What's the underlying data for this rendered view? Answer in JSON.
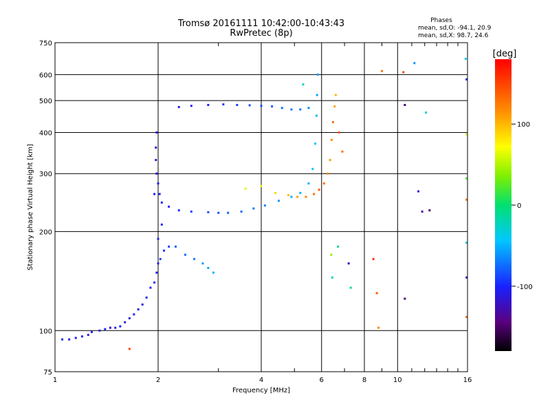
{
  "chart_data": {
    "type": "scatter",
    "title": "Tromsø 20161111 10:42:00-10:43:43",
    "subtitle": "RwPretec (8p)",
    "stats": {
      "heading": "Phases",
      "line_o": "mean, sd,O: -94.1, 20.9",
      "line_x": "mean, sd,X:  98.7, 24.6"
    },
    "xlabel": "Frequency [MHz]",
    "ylabel": "Stationary phase Virtual Height [km]",
    "x_scale": "log",
    "y_scale": "log",
    "xlim": [
      1,
      16
    ],
    "ylim": [
      75,
      750
    ],
    "x_ticks": [
      1,
      2,
      4,
      6,
      8,
      10,
      16
    ],
    "x_tick_labels": [
      "1",
      "2",
      "4",
      "6",
      "8",
      "10",
      "16"
    ],
    "y_ticks": [
      75,
      100,
      200,
      300,
      400,
      500,
      600,
      750
    ],
    "y_tick_labels": [
      "75",
      "100",
      "200",
      "300",
      "400",
      "500",
      "600",
      "750"
    ],
    "grid": true,
    "colorbar": {
      "label": "[deg]",
      "range": [
        -180,
        180
      ],
      "ticks": [
        100,
        0,
        -100
      ],
      "tick_labels": [
        "100",
        "0",
        "-100"
      ]
    },
    "series": [
      {
        "points": [
          [
            1.05,
            94,
            -100
          ],
          [
            1.1,
            94,
            -110
          ],
          [
            1.15,
            95,
            -105
          ],
          [
            1.2,
            96,
            -100
          ],
          [
            1.25,
            97,
            -115
          ],
          [
            1.28,
            99,
            -100
          ],
          [
            1.35,
            100,
            -110
          ],
          [
            1.4,
            101,
            -100
          ],
          [
            1.45,
            102,
            -120
          ],
          [
            1.5,
            102,
            -105
          ],
          [
            1.55,
            103,
            -100
          ],
          [
            1.6,
            106,
            -110
          ],
          [
            1.65,
            109,
            -115
          ],
          [
            1.7,
            112,
            -100
          ],
          [
            1.75,
            116,
            -105
          ],
          [
            1.8,
            120,
            -110
          ],
          [
            1.85,
            126,
            -100
          ],
          [
            1.9,
            135,
            -100
          ],
          [
            1.95,
            140,
            -95
          ],
          [
            1.98,
            150,
            -105
          ],
          [
            2.0,
            160,
            -110
          ],
          [
            2.03,
            165,
            -90
          ],
          [
            2.08,
            175,
            -95
          ],
          [
            2.15,
            180,
            -90
          ],
          [
            2.25,
            180,
            -80
          ],
          [
            2.4,
            170,
            -75
          ],
          [
            2.55,
            165,
            -70
          ],
          [
            2.7,
            160,
            -60
          ],
          [
            2.8,
            155,
            -55
          ],
          [
            2.9,
            150,
            -50
          ],
          [
            1.98,
            300,
            -110
          ],
          [
            1.97,
            330,
            -115
          ],
          [
            1.97,
            360,
            -120
          ],
          [
            1.98,
            400,
            -115
          ],
          [
            2.0,
            280,
            -105
          ],
          [
            2.02,
            260,
            -105
          ],
          [
            2.05,
            245,
            -100
          ],
          [
            2.15,
            238,
            -100
          ],
          [
            2.3,
            232,
            -95
          ],
          [
            2.5,
            230,
            -90
          ],
          [
            2.8,
            229,
            -85
          ],
          [
            3.0,
            228,
            -85
          ],
          [
            3.2,
            228,
            -80
          ],
          [
            3.5,
            230,
            -75
          ],
          [
            3.8,
            235,
            -70
          ],
          [
            4.1,
            240,
            -65
          ],
          [
            4.5,
            248,
            -60
          ],
          [
            4.9,
            255,
            -55
          ],
          [
            5.2,
            262,
            -50
          ],
          [
            5.5,
            280,
            -50
          ],
          [
            5.65,
            310,
            -45
          ],
          [
            5.75,
            370,
            -45
          ],
          [
            5.8,
            450,
            -50
          ],
          [
            5.82,
            520,
            -55
          ],
          [
            5.85,
            600,
            -60
          ],
          [
            5.5,
            475,
            -65
          ],
          [
            5.2,
            470,
            -70
          ],
          [
            4.9,
            470,
            -70
          ],
          [
            4.6,
            475,
            -75
          ],
          [
            4.3,
            480,
            -80
          ],
          [
            4.0,
            482,
            -85
          ],
          [
            3.7,
            484,
            -85
          ],
          [
            3.4,
            485,
            -90
          ],
          [
            3.1,
            487,
            -95
          ],
          [
            2.8,
            485,
            -100
          ],
          [
            2.5,
            482,
            -105
          ],
          [
            2.3,
            478,
            -110
          ],
          [
            3.6,
            270,
            60
          ],
          [
            4.0,
            275,
            70
          ],
          [
            4.4,
            262,
            90
          ],
          [
            4.8,
            258,
            100
          ],
          [
            5.1,
            255,
            110
          ],
          [
            5.4,
            255,
            120
          ],
          [
            5.7,
            260,
            130
          ],
          [
            5.9,
            268,
            140
          ],
          [
            6.1,
            280,
            130
          ],
          [
            6.25,
            300,
            120
          ],
          [
            6.35,
            330,
            110
          ],
          [
            6.42,
            380,
            120
          ],
          [
            6.48,
            430,
            130
          ],
          [
            6.55,
            480,
            110
          ],
          [
            6.6,
            520,
            100
          ],
          [
            6.75,
            400,
            140
          ],
          [
            6.9,
            350,
            130
          ],
          [
            6.4,
            170,
            40
          ],
          [
            6.45,
            145,
            -20
          ],
          [
            6.7,
            180,
            -10
          ],
          [
            7.2,
            160,
            -120
          ],
          [
            7.3,
            135,
            -10
          ],
          [
            8.5,
            165,
            160
          ],
          [
            8.7,
            130,
            140
          ],
          [
            8.8,
            102,
            120
          ],
          [
            9.0,
            615,
            130
          ],
          [
            10.4,
            610,
            150
          ],
          [
            10.5,
            485,
            -150
          ],
          [
            10.5,
            125,
            -150
          ],
          [
            11.2,
            650,
            -60
          ],
          [
            11.5,
            265,
            -110
          ],
          [
            11.8,
            230,
            -130
          ],
          [
            12.1,
            460,
            -30
          ],
          [
            12.4,
            232,
            -150
          ],
          [
            15.8,
            670,
            -40
          ],
          [
            15.9,
            580,
            -100
          ],
          [
            15.9,
            395,
            60
          ],
          [
            15.9,
            290,
            20
          ],
          [
            15.9,
            250,
            130
          ],
          [
            15.9,
            185,
            -30
          ],
          [
            15.9,
            145,
            -120
          ],
          [
            15.9,
            110,
            130
          ],
          [
            1.95,
            260,
            -105
          ],
          [
            2.05,
            210,
            -100
          ],
          [
            2.0,
            190,
            -105
          ],
          [
            1.65,
            88,
            150
          ],
          [
            5.3,
            560,
            -20
          ]
        ]
      }
    ]
  }
}
